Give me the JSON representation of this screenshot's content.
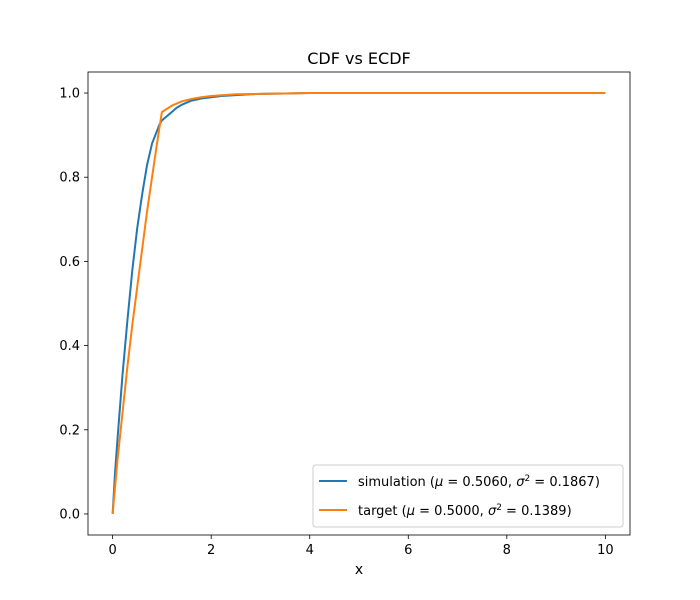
{
  "chart_data": {
    "type": "line",
    "title": "CDF vs ECDF",
    "xlabel": "x",
    "ylabel": "",
    "xlim": [
      -0.5,
      10.5
    ],
    "ylim": [
      -0.05,
      1.05
    ],
    "xticks": [
      0,
      2,
      4,
      6,
      8,
      10
    ],
    "yticks": [
      0.0,
      0.2,
      0.4,
      0.6,
      0.8,
      1.0
    ],
    "xtick_labels": [
      "0",
      "2",
      "4",
      "6",
      "8",
      "10"
    ],
    "ytick_labels": [
      "0.0",
      "0.2",
      "0.4",
      "0.6",
      "0.8",
      "1.0"
    ],
    "grid": false,
    "legend_position": "bottom-right",
    "series": [
      {
        "name": "simulation (μ = 0.5060, σ² = 0.1867)",
        "legend_parts": {
          "prefix": "simulation (",
          "mu": "μ",
          "mu_val": " = 0.5060, ",
          "sigma": "σ",
          "sup": "2",
          "sigma_val": " = 0.1867)"
        },
        "color": "#1f77b4",
        "x": [
          0,
          0.05,
          0.1,
          0.2,
          0.3,
          0.4,
          0.5,
          0.6,
          0.7,
          0.8,
          0.9,
          0.95,
          1.0,
          1.1,
          1.2,
          1.3,
          1.4,
          1.5,
          1.6,
          1.8,
          2.0,
          2.2,
          2.5,
          2.8,
          3.0,
          3.5,
          4.0,
          5.0,
          10.0
        ],
        "y": [
          0,
          0.1,
          0.18,
          0.33,
          0.46,
          0.58,
          0.68,
          0.76,
          0.83,
          0.88,
          0.91,
          0.925,
          0.935,
          0.945,
          0.955,
          0.965,
          0.972,
          0.977,
          0.982,
          0.987,
          0.99,
          0.993,
          0.995,
          0.997,
          0.998,
          0.999,
          1.0,
          1.0,
          1.0
        ]
      },
      {
        "name": "target (μ = 0.5000, σ² = 0.1389)",
        "legend_parts": {
          "prefix": "target (",
          "mu": "μ",
          "mu_val": " = 0.5000, ",
          "sigma": "σ",
          "sup": "2",
          "sigma_val": " = 0.1389)"
        },
        "color": "#ff7f0e",
        "x": [
          0,
          0.1,
          0.2,
          0.3,
          0.4,
          0.5,
          0.6,
          0.7,
          0.8,
          0.9,
          1.0,
          1.2,
          1.4,
          1.6,
          1.8,
          2.0,
          2.5,
          3.0,
          3.5,
          4.0,
          5.0,
          6.0,
          8.0,
          10.0
        ],
        "y": [
          0,
          0.13,
          0.24,
          0.35,
          0.45,
          0.54,
          0.63,
          0.72,
          0.8,
          0.88,
          0.955,
          0.97,
          0.98,
          0.986,
          0.99,
          0.993,
          0.997,
          0.998,
          0.999,
          1.0,
          1.0,
          1.0,
          1.0,
          1.0
        ]
      }
    ]
  }
}
